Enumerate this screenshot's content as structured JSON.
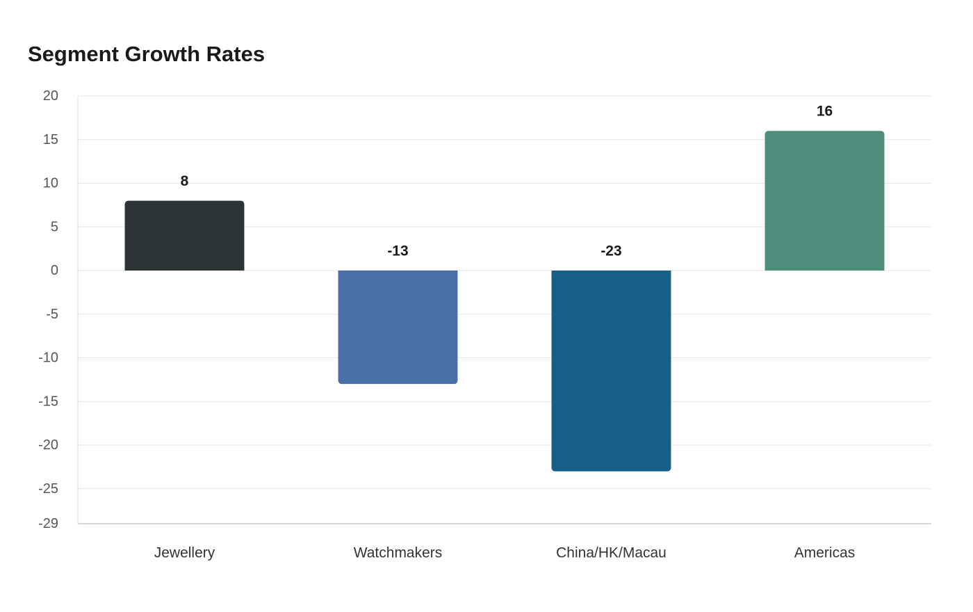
{
  "chart_data": {
    "type": "bar",
    "title": "Segment Growth Rates",
    "xlabel": "",
    "ylabel": "",
    "categories": [
      "Jewellery",
      "Watchmakers",
      "China/HK/Macau",
      "Americas"
    ],
    "values": [
      8,
      -13,
      -23,
      16
    ],
    "colors": [
      "#2d3436",
      "#4a6fa5",
      "#166088",
      "#4e8d7c"
    ],
    "ylim": [
      -29,
      20
    ],
    "yticks": [
      20,
      15,
      10,
      5,
      0,
      -5,
      -10,
      -15,
      -20,
      -25,
      -29
    ],
    "grid": true,
    "legend": "none"
  }
}
